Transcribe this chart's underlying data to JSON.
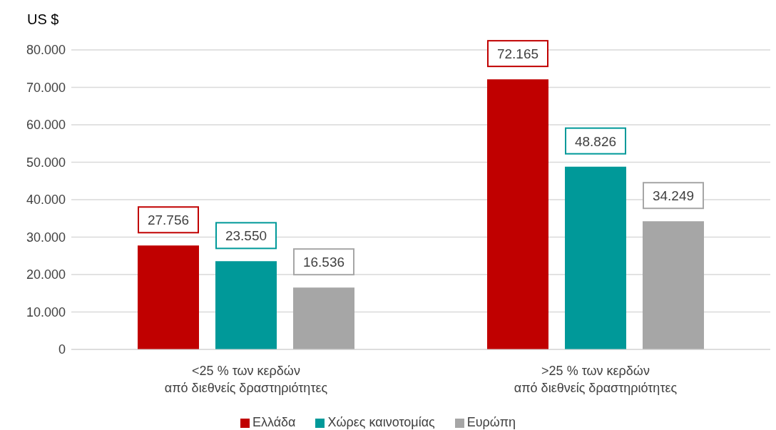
{
  "chart_data": {
    "type": "bar",
    "ylabel": "US $",
    "categories": [
      "<25 % των κερδών\nαπό διεθνείς δραστηριότητες",
      ">25 % των κερδών\nαπό διεθνείς δραστηριότητες"
    ],
    "series": [
      {
        "name": "Ελλάδα",
        "color": "#c00000",
        "values": [
          27756,
          72165
        ],
        "value_labels": [
          "27.756",
          "72.165"
        ]
      },
      {
        "name": "Χώρες καινοτομίας",
        "color": "#009999",
        "values": [
          23550,
          48826
        ],
        "value_labels": [
          "23.550",
          "48.826"
        ]
      },
      {
        "name": "Ευρώπη",
        "color": "#a6a6a6",
        "values": [
          16536,
          34249
        ],
        "value_labels": [
          "16.536",
          "34.249"
        ]
      }
    ],
    "ylim": [
      0,
      80000
    ],
    "yticks": [
      0,
      {
        "value": 10000,
        "label": "10.000"
      },
      {
        "value": 20000,
        "label": "20.000"
      },
      {
        "value": 30000,
        "label": "30.000"
      },
      {
        "value": 40000,
        "label": "40.000"
      },
      {
        "value": 50000,
        "label": "50.000"
      },
      {
        "value": 60000,
        "label": "60.000"
      },
      {
        "value": 70000,
        "label": "70.000"
      },
      {
        "value": 80000,
        "label": "80.000"
      }
    ],
    "grid": "y",
    "legend": "bottom"
  }
}
